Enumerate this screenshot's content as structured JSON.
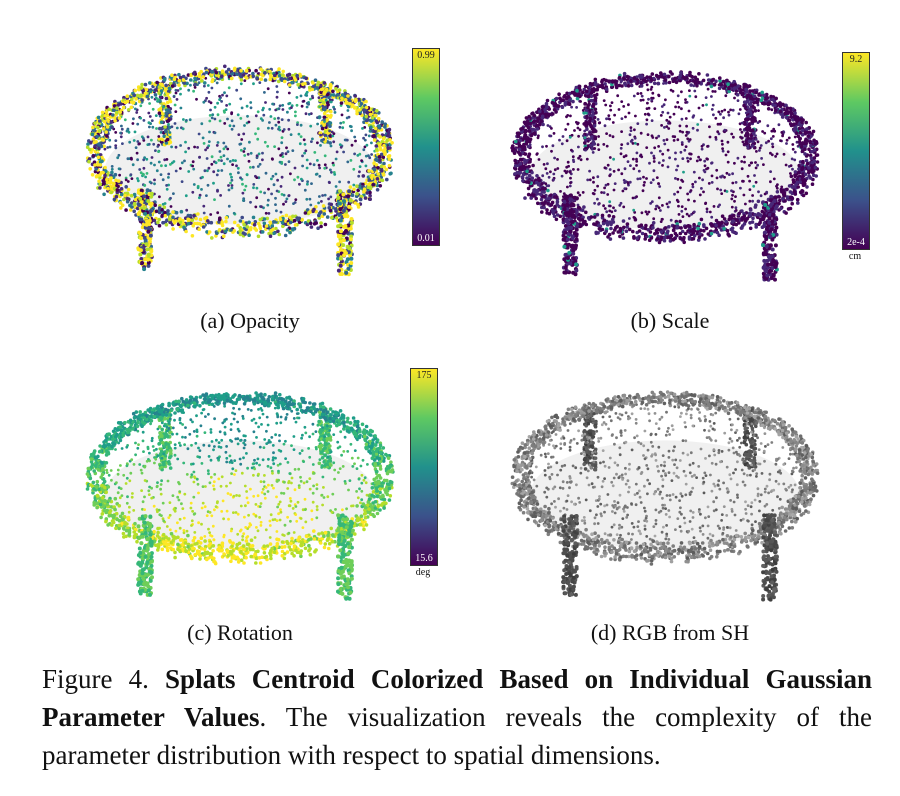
{
  "panels": [
    {
      "id": "opacity",
      "caption": "(a) Opacity",
      "colorbar": {
        "max": "0.99",
        "min": "0.01",
        "unit": ""
      },
      "scheme": "viridis-opacity"
    },
    {
      "id": "scale",
      "caption": "(b) Scale",
      "colorbar": {
        "max": "9.2",
        "min": "2e-4",
        "unit": "cm"
      },
      "scheme": "viridis-scale"
    },
    {
      "id": "rotation",
      "caption": "(c) Rotation",
      "colorbar": {
        "max": "175",
        "min": "15.6",
        "unit": "deg"
      },
      "scheme": "viridis-rotation"
    },
    {
      "id": "rgb",
      "caption": "(d) RGB from SH",
      "scheme": "gray"
    }
  ],
  "figure_caption": {
    "label": "Figure 4.",
    "title": "Splats Centroid Colorized Based on Individual Gaussian Parameter Values",
    "body": ". The visualization reveals the complexity of the parameter distribution with respect to spatial dimensions."
  },
  "colors": {
    "viridis_low": "#440154",
    "viridis_mid": "#21918c",
    "viridis_high": "#fde725"
  }
}
